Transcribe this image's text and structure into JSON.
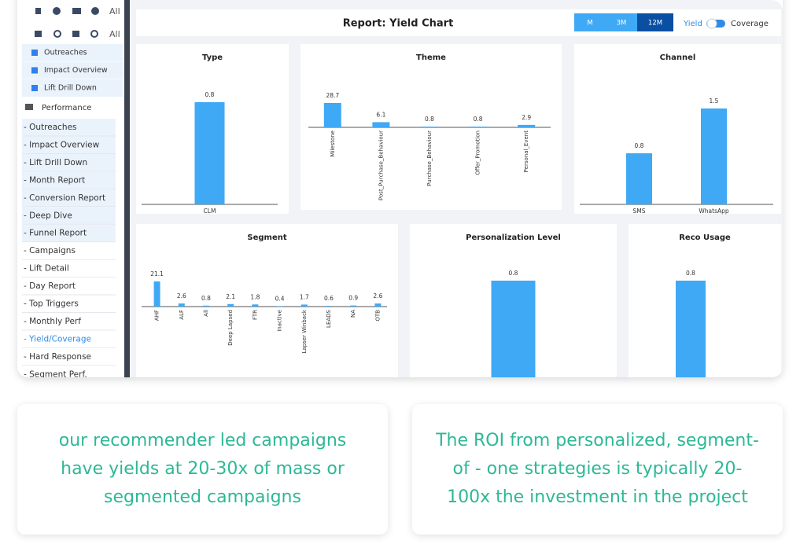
{
  "sidebar": {
    "top_all": "All",
    "second_all": "All",
    "groups": [
      "Outreaches",
      "Impact Overview",
      "Lift Drill Down"
    ],
    "section": "Performance",
    "items": [
      "- Outreaches",
      "- Impact Overview",
      "- Lift Drill Down",
      "- Month Report",
      "- Conversion Report",
      "- Deep Dive",
      "- Funnel Report",
      "- Campaigns",
      "- Lift Detail",
      "- Day Report",
      "- Top Triggers",
      "- Monthly Perf",
      "- Yield/Coverage",
      "- Hard Response",
      "- Segment Perf."
    ],
    "active": 12
  },
  "header": {
    "title": "Report: Yield Chart",
    "periods": [
      "M",
      "3M",
      "12M"
    ],
    "selected_period": 2,
    "toggle_left": "Yield",
    "toggle_right": "Coverage"
  },
  "chart_data": [
    {
      "type": "bar",
      "title": "Type",
      "categories": [
        "CLM"
      ],
      "values": [
        0.8
      ],
      "color": "#3fa9f5"
    },
    {
      "type": "bar",
      "title": "Theme",
      "categories": [
        "Milestone",
        "Post_Purchase_Behaviour",
        "Purchase_Behaviour",
        "Offer_Promotion",
        "Personal_Event"
      ],
      "values": [
        28.7,
        6.1,
        0.8,
        0.8,
        2.9
      ],
      "color": "#3fa9f5",
      "rotate_labels": true
    },
    {
      "type": "bar",
      "title": "Channel",
      "categories": [
        "SMS",
        "WhatsApp"
      ],
      "values": [
        0.8,
        1.5
      ],
      "color": "#3fa9f5"
    },
    {
      "type": "bar",
      "title": "Segment",
      "categories": [
        "AHF",
        "ALF",
        "All",
        "Deep Lapsed",
        "FTR",
        "Inactive",
        "Lapser Winback",
        "LEADS",
        "NA",
        "OTB"
      ],
      "values": [
        21.1,
        2.6,
        0.8,
        2.1,
        1.8,
        0.4,
        1.7,
        0.6,
        0.9,
        2.6
      ],
      "color": "#3fa9f5",
      "rotate_labels": true
    },
    {
      "type": "bar",
      "title": "Personalization Level",
      "categories": [
        null
      ],
      "values": [
        0.8
      ],
      "color": "#3fa9f5"
    },
    {
      "type": "bar",
      "title": "Reco Usage",
      "categories": [
        null
      ],
      "values": [
        0.8
      ],
      "color": "#3fa9f5"
    }
  ],
  "cards": [
    "our recommender led campaigns have yields at 20-30x of mass or segmented campaigns",
    "The ROI from personalized, segment-of - one strategies is typically 20-100x the investment in the project"
  ]
}
